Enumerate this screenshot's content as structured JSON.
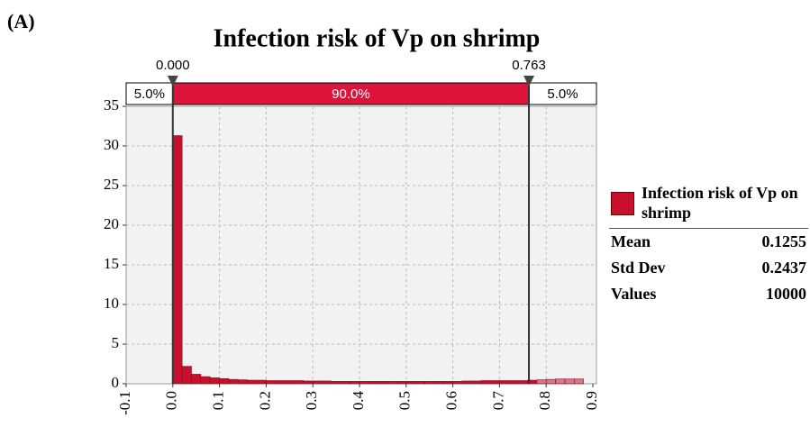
{
  "panel_label": "(A)",
  "chart_data": {
    "type": "histogram",
    "title": "Infection risk of Vp on shrimp",
    "bins": [
      0,
      0.02,
      0.04,
      0.06,
      0.08,
      0.1,
      0.12,
      0.14,
      0.16,
      0.18,
      0.2,
      0.22,
      0.24,
      0.26,
      0.28,
      0.3,
      0.32,
      0.34,
      0.36,
      0.38,
      0.4,
      0.42,
      0.44,
      0.46,
      0.48,
      0.5,
      0.52,
      0.54,
      0.56,
      0.58,
      0.6,
      0.62,
      0.64,
      0.66,
      0.68,
      0.7,
      0.72,
      0.74,
      0.76,
      0.78,
      0.8,
      0.82,
      0.84,
      0.86,
      0.88
    ],
    "series": [
      {
        "name": "Infection risk of Vp on shrimp",
        "color": "#c8102e",
        "values": [
          31.3,
          2.2,
          1.2,
          0.9,
          0.75,
          0.65,
          0.55,
          0.5,
          0.45,
          0.45,
          0.4,
          0.4,
          0.4,
          0.4,
          0.35,
          0.35,
          0.35,
          0.3,
          0.3,
          0.3,
          0.3,
          0.3,
          0.3,
          0.3,
          0.3,
          0.3,
          0.3,
          0.3,
          0.3,
          0.3,
          0.3,
          0.35,
          0.35,
          0.4,
          0.4,
          0.4,
          0.4,
          0.4,
          0.45,
          0.5,
          0.55,
          0.6,
          0.6,
          0.6
        ]
      }
    ],
    "xlim": [
      -0.1,
      0.9
    ],
    "xticks": [
      -0.1,
      {
        "value": 0,
        "label": "0.0"
      },
      0.1,
      0.2,
      0.3,
      0.4,
      0.5,
      0.6,
      0.7,
      0.8,
      0.9
    ],
    "ylim": [
      0,
      35
    ],
    "yticks": [
      0,
      5,
      10,
      15,
      20,
      25,
      30,
      35
    ],
    "grid": true,
    "delimiters": [
      {
        "value": 0,
        "label": "0.000"
      },
      {
        "value": 0.763,
        "label": "0.763"
      }
    ],
    "band_labels": [
      "5.0%",
      "90.0%",
      "5.0%"
    ],
    "band_color": "#dc143c",
    "stats": [
      {
        "label": "Mean",
        "value": 0.1255
      },
      {
        "label": "Std Dev",
        "value": 0.2437
      },
      {
        "label": "Values",
        "value": 10000
      }
    ]
  }
}
